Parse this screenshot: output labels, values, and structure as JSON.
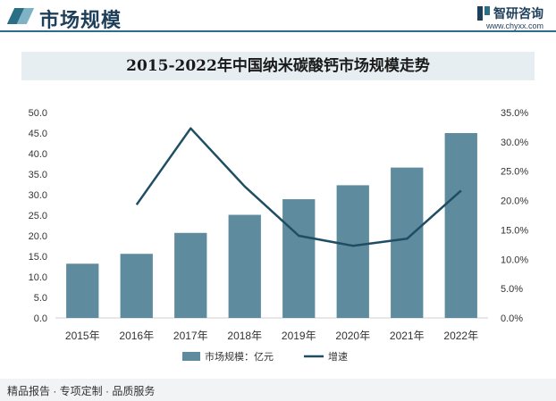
{
  "header": {
    "title": "市场规模",
    "logo_text": "智研咨询",
    "logo_url": "www.chyxx.com"
  },
  "footer": {
    "tagline": "精品报告 · 专项定制 · 品质服务"
  },
  "colors": {
    "bar": "#5e8b9d",
    "line": "#1f4e63",
    "axis": "#cfcfcf"
  },
  "chart_data": {
    "type": "bar",
    "title": "2015-2022年中国纳米碳酸钙市场规模走势",
    "categories": [
      "2015年",
      "2016年",
      "2017年",
      "2018年",
      "2019年",
      "2020年",
      "2021年",
      "2022年"
    ],
    "y_ticks": [
      "0.0",
      "5.0",
      "10.0",
      "15.0",
      "20.0",
      "25.0",
      "30.0",
      "35.0",
      "40.0",
      "45.0",
      "50.0"
    ],
    "y2_ticks": [
      "0.0%",
      "5.0%",
      "10.0%",
      "15.0%",
      "20.0%",
      "25.0%",
      "30.0%",
      "35.0%"
    ],
    "ylim": [
      0,
      50
    ],
    "y2lim": [
      0,
      35
    ],
    "series": [
      {
        "name": "市场规模：亿元",
        "type": "bar",
        "values": [
          13.2,
          15.6,
          20.7,
          25.1,
          28.9,
          32.3,
          36.6,
          45.0
        ]
      },
      {
        "name": "增速",
        "type": "line",
        "axis": "right",
        "values": [
          null,
          19.3,
          32.3,
          22.4,
          14.0,
          12.3,
          13.5,
          21.7
        ]
      }
    ],
    "legend_position": "bottom"
  }
}
